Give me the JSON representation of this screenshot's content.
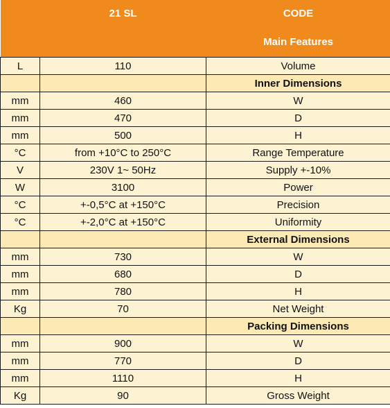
{
  "header": {
    "model": "21 SL",
    "code": "CODE",
    "main_features": "Main Features"
  },
  "rows": [
    {
      "kind": "data",
      "unit": "L",
      "value": "110",
      "feature": "Volume"
    },
    {
      "kind": "section",
      "title": "Inner Dimensions"
    },
    {
      "kind": "data",
      "unit": "mm",
      "value": "460",
      "feature": "W"
    },
    {
      "kind": "data",
      "unit": "mm",
      "value": "470",
      "feature": "D"
    },
    {
      "kind": "data",
      "unit": "mm",
      "value": "500",
      "feature": "H"
    },
    {
      "kind": "data",
      "unit": "°C",
      "value": "from +10°C to 250°C",
      "feature": "Range Temperature"
    },
    {
      "kind": "data",
      "unit": "V",
      "value": "230V 1~ 50Hz",
      "feature": "Supply +-10%"
    },
    {
      "kind": "data",
      "unit": "W",
      "value": "3100",
      "feature": "Power"
    },
    {
      "kind": "data",
      "unit": "°C",
      "value": "+-0,5°C at +150°C",
      "feature": "Precision"
    },
    {
      "kind": "data",
      "unit": "°C",
      "value": "+-2,0°C at +150°C",
      "feature": "Uniformity"
    },
    {
      "kind": "section",
      "title": "External Dimensions"
    },
    {
      "kind": "data",
      "unit": "mm",
      "value": "730",
      "feature": "W"
    },
    {
      "kind": "data",
      "unit": "mm",
      "value": "680",
      "feature": "D"
    },
    {
      "kind": "data",
      "unit": "mm",
      "value": "780",
      "feature": "H"
    },
    {
      "kind": "data",
      "unit": "Kg",
      "value": "70",
      "feature": "Net Weight"
    },
    {
      "kind": "section",
      "title": "Packing Dimensions"
    },
    {
      "kind": "data",
      "unit": "mm",
      "value": "900",
      "feature": "W"
    },
    {
      "kind": "data",
      "unit": "mm",
      "value": "770",
      "feature": "D"
    },
    {
      "kind": "data",
      "unit": "mm",
      "value": "1110",
      "feature": "H"
    },
    {
      "kind": "data",
      "unit": "Kg",
      "value": "90",
      "feature": "Gross Weight"
    }
  ]
}
